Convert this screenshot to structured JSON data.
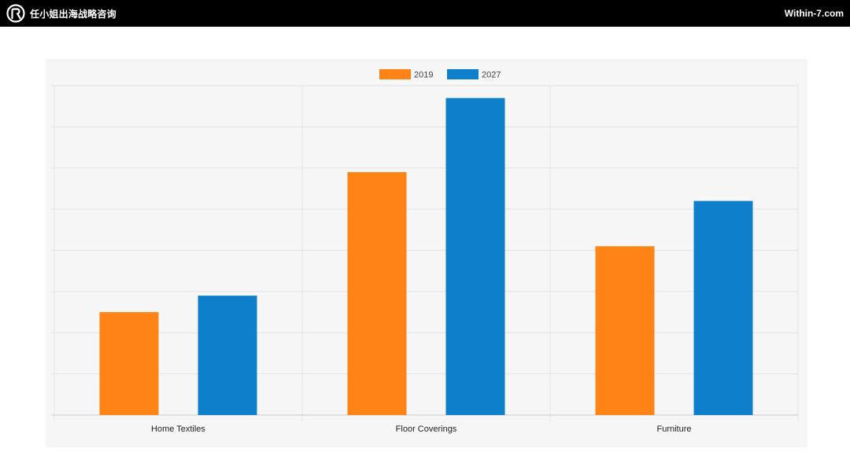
{
  "header": {
    "brand": "任小姐出海战略咨询",
    "site": "Within-7.com",
    "logo_icon": "brand-logo-icon"
  },
  "chart_data": {
    "type": "bar",
    "categories": [
      "Home Textiles",
      "Floor Coverings",
      "Furniture"
    ],
    "series": [
      {
        "name": "2019",
        "color": "#ff8316",
        "values": [
          25,
          59,
          41
        ]
      },
      {
        "name": "2027",
        "color": "#0e7fca",
        "values": [
          29,
          77,
          52
        ]
      }
    ],
    "ylim": [
      0,
      80
    ],
    "y_gridlines": 8,
    "grid": true,
    "legend": "top-center",
    "title": "",
    "xlabel": "",
    "ylabel": ""
  }
}
